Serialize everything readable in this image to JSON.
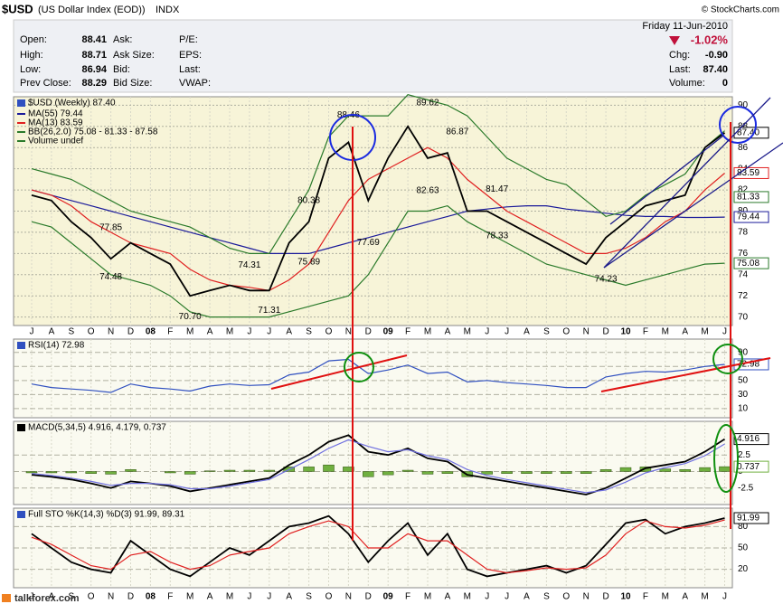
{
  "header": {
    "symbol": "$USD",
    "name": "(US Dollar Index (EOD))",
    "exchange": "INDX",
    "credit": "© StockCharts.com",
    "date": "Friday  11-Jun-2010",
    "change_pct": "-1.02%",
    "quote": [
      {
        "label": "Open:",
        "value": "88.41"
      },
      {
        "label": "High:",
        "value": "88.71"
      },
      {
        "label": "Low:",
        "value": "86.94"
      },
      {
        "label": "Prev Close:",
        "value": "88.29"
      }
    ],
    "col2": [
      "Ask:",
      "Ask Size:",
      "Bid:",
      "Bid Size:"
    ],
    "col3": [
      "P/E:",
      "EPS:",
      "Last:",
      "VWAP:"
    ],
    "right": [
      {
        "label": "Chg:",
        "value": "-0.90"
      },
      {
        "label": "Last:",
        "value": "87.40"
      },
      {
        "label": "Volume:",
        "value": "0"
      }
    ],
    "watermark": "talkforex.com"
  },
  "chart_data": [
    {
      "type": "line",
      "title": "$USD (Weekly) 87.40",
      "categories": [
        "J",
        "A",
        "S",
        "O",
        "N",
        "D",
        "08",
        "F",
        "M",
        "A",
        "M",
        "J",
        "J",
        "A",
        "S",
        "O",
        "N",
        "D",
        "09",
        "F",
        "M",
        "A",
        "M",
        "J",
        "J",
        "A",
        "S",
        "O",
        "N",
        "D",
        "10",
        "F",
        "M",
        "A",
        "M",
        "J"
      ],
      "ylim": [
        69.2,
        90.8
      ],
      "yticks": [
        70,
        72,
        74,
        76,
        78,
        80,
        82,
        84,
        86,
        88,
        90
      ],
      "grid": true,
      "series": [
        {
          "name": "MA(55) 79.44",
          "color": "#1a1a9a",
          "values": [
            82,
            81.5,
            81,
            80.5,
            80,
            79.5,
            79,
            78.5,
            78,
            77.5,
            77,
            76.5,
            76,
            76,
            76,
            76.5,
            77,
            77.5,
            78,
            78.5,
            79,
            79.5,
            80,
            80.2,
            80.4,
            80.5,
            80.5,
            80.2,
            80,
            79.8,
            79.6,
            79.5,
            79.5,
            79.4,
            79.4,
            79.44
          ]
        },
        {
          "name": "MA(13) 83.59",
          "color": "#e02020",
          "values": [
            82,
            81.5,
            80.5,
            79,
            78,
            77,
            76.5,
            76,
            74.5,
            73.5,
            73,
            72.8,
            72.5,
            73.5,
            75,
            78,
            81,
            83,
            84,
            85,
            86,
            85,
            83,
            81.5,
            80,
            79,
            78,
            77,
            76,
            76,
            76.5,
            77.5,
            79,
            80,
            82,
            83.59
          ]
        },
        {
          "name": "BB(26,2.0) 75.08 - 81.33 - 87.58",
          "color": "#2a7a2a",
          "values": [
            84,
            83.5,
            83,
            82,
            81,
            80,
            79.5,
            79,
            78.5,
            77.5,
            76.5,
            76,
            76,
            79,
            82,
            87,
            89,
            89,
            89,
            91,
            90.5,
            90,
            89,
            87,
            85,
            84,
            83,
            82.5,
            81,
            79.5,
            80,
            81.5,
            82.5,
            83.5,
            86,
            87.58
          ]
        },
        {
          "name": "Volume undef",
          "color": "#2a7a2a",
          "values": [
            79,
            78.5,
            77,
            75.5,
            74,
            73.5,
            73,
            72,
            70.5,
            70,
            70,
            70,
            70,
            70.5,
            71,
            71.5,
            72,
            74,
            77,
            80,
            80,
            80.5,
            79,
            78,
            77,
            76,
            75,
            74.5,
            74,
            73.5,
            73,
            73.5,
            74,
            74.5,
            75,
            75.08
          ]
        },
        {
          "name": "$USD",
          "color": "#000000",
          "values": [
            81.5,
            81,
            79,
            77.5,
            75.5,
            77,
            76,
            75,
            72,
            72.5,
            73,
            72.5,
            72.5,
            77,
            79,
            85,
            86.5,
            81,
            85,
            88,
            85,
            85.5,
            80,
            80,
            79,
            78,
            77,
            76,
            75,
            77.5,
            79,
            80.5,
            81,
            81.5,
            86,
            87.4
          ]
        }
      ],
      "annotations": [
        {
          "text": "77.85",
          "x": 4,
          "value": 77.85,
          "position": "above"
        },
        {
          "text": "74.48",
          "x": 4,
          "value": 74.48,
          "position": "below"
        },
        {
          "text": "70.70",
          "x": 8,
          "value": 70.7,
          "position": "below"
        },
        {
          "text": "74.31",
          "x": 11,
          "value": 74.31,
          "position": "above"
        },
        {
          "text": "71.31",
          "x": 12,
          "value": 71.31,
          "position": "below"
        },
        {
          "text": "75.89",
          "x": 14,
          "value": 75.89,
          "position": "below"
        },
        {
          "text": "80.38",
          "x": 14,
          "value": 80.38,
          "position": "above"
        },
        {
          "text": "88.46",
          "x": 16,
          "value": 88.46,
          "position": "above"
        },
        {
          "text": "77.69",
          "x": 17,
          "value": 77.69,
          "position": "below"
        },
        {
          "text": "82.63",
          "x": 20,
          "value": 82.63,
          "position": "below"
        },
        {
          "text": "89.62",
          "x": 20,
          "value": 89.62,
          "position": "above"
        },
        {
          "text": "86.87",
          "x": 21.5,
          "value": 86.87,
          "position": "above"
        },
        {
          "text": "81.47",
          "x": 23.5,
          "value": 81.47,
          "position": "above"
        },
        {
          "text": "78.33",
          "x": 23.5,
          "value": 78.33,
          "position": "below"
        },
        {
          "text": "74.23",
          "x": 29,
          "value": 74.23,
          "position": "below"
        }
      ],
      "tags": [
        {
          "value": 87.4,
          "label": "87.40",
          "color": "#000000"
        },
        {
          "value": 83.59,
          "label": "83.59",
          "color": "#e02020"
        },
        {
          "value": 81.33,
          "label": "81.33",
          "color": "#2a7a2a"
        },
        {
          "value": 79.44,
          "label": "79.44",
          "color": "#1a1a9a"
        },
        {
          "value": 75.08,
          "label": "75.08",
          "color": "#2a7a2a"
        }
      ]
    },
    {
      "type": "line",
      "title": "RSI(14) 72.98",
      "ylim": [
        -3,
        109
      ],
      "yticks": [
        10,
        30,
        50,
        70,
        90
      ],
      "grid": true,
      "series": [
        {
          "name": "RSI",
          "color": "#3050c0",
          "values": [
            45,
            40,
            38,
            36,
            33,
            45,
            40,
            38,
            35,
            42,
            45,
            43,
            44,
            58,
            62,
            78,
            80,
            60,
            65,
            72,
            60,
            62,
            48,
            50,
            47,
            45,
            43,
            40,
            40,
            55,
            60,
            63,
            62,
            65,
            70,
            72.98
          ]
        }
      ],
      "tags": [
        {
          "value": 72.98,
          "label": "72.98",
          "color": "#3050c0"
        }
      ]
    },
    {
      "type": "line",
      "title": "MACD(5,34,5) 4.916, 4.179, 0.737",
      "ylim": [
        -5,
        7.6
      ],
      "yticks": [
        -2.5,
        0,
        2.5
      ],
      "grid": true,
      "series": [
        {
          "name": "MACD",
          "color": "#000000",
          "values": [
            -0.5,
            -0.8,
            -1.2,
            -1.8,
            -2.5,
            -1.5,
            -1.8,
            -2.2,
            -3,
            -2.5,
            -2,
            -1.5,
            -1,
            1,
            2.5,
            4.5,
            5.5,
            3,
            2.5,
            3.5,
            2,
            1.5,
            -0.5,
            -1,
            -1.5,
            -2,
            -2.5,
            -3,
            -3.5,
            -2.5,
            -1,
            0.5,
            1,
            1.5,
            3,
            4.916
          ]
        },
        {
          "name": "Signal",
          "color": "#7070e0",
          "values": [
            -0.3,
            -0.6,
            -1,
            -1.5,
            -2.1,
            -1.8,
            -1.8,
            -2,
            -2.6,
            -2.6,
            -2.2,
            -1.7,
            -1.2,
            0.3,
            1.8,
            3.5,
            4.8,
            3.8,
            3,
            3.3,
            2.4,
            1.8,
            0.3,
            -0.6,
            -1.2,
            -1.7,
            -2.2,
            -2.7,
            -3.2,
            -2.8,
            -1.6,
            -0.2,
            0.6,
            1.2,
            2.4,
            4.179
          ]
        }
      ],
      "histogram": {
        "color": "#70b040",
        "values": [
          -0.2,
          -0.2,
          -0.2,
          -0.3,
          -0.4,
          0.3,
          0,
          -0.2,
          -0.4,
          0.1,
          0.2,
          0.2,
          0.2,
          0.7,
          0.7,
          1,
          0.7,
          -0.8,
          -0.5,
          0.2,
          -0.4,
          -0.3,
          -0.8,
          -0.4,
          -0.3,
          -0.3,
          -0.3,
          -0.3,
          -0.3,
          0.3,
          0.6,
          0.7,
          0.4,
          0.3,
          0.6,
          0.737
        ]
      },
      "tags": [
        {
          "value": 4.916,
          "label": "4.916",
          "color": "#000000"
        },
        {
          "value": 0.737,
          "label": "0.737",
          "color": "#70b040"
        }
      ]
    },
    {
      "type": "line",
      "title": "Full STO %K(14,3) %D(3) 91.99, 89.31",
      "ylim": [
        -6,
        106
      ],
      "yticks": [
        20,
        50,
        80
      ],
      "grid": true,
      "series": [
        {
          "name": "%K",
          "color": "#000000",
          "values": [
            70,
            50,
            30,
            20,
            15,
            60,
            40,
            20,
            10,
            30,
            50,
            40,
            60,
            80,
            85,
            95,
            70,
            30,
            60,
            85,
            40,
            70,
            20,
            10,
            15,
            20,
            25,
            15,
            25,
            55,
            85,
            90,
            70,
            80,
            85,
            91.99
          ]
        },
        {
          "name": "%D",
          "color": "#e02020",
          "values": [
            65,
            55,
            40,
            25,
            20,
            40,
            45,
            30,
            20,
            25,
            40,
            45,
            50,
            70,
            80,
            88,
            80,
            50,
            50,
            70,
            60,
            60,
            40,
            20,
            15,
            18,
            22,
            20,
            22,
            40,
            70,
            88,
            80,
            78,
            82,
            89.31
          ]
        }
      ],
      "tags": [
        {
          "value": 91.99,
          "label": "91.99",
          "color": "#000000"
        }
      ]
    }
  ]
}
